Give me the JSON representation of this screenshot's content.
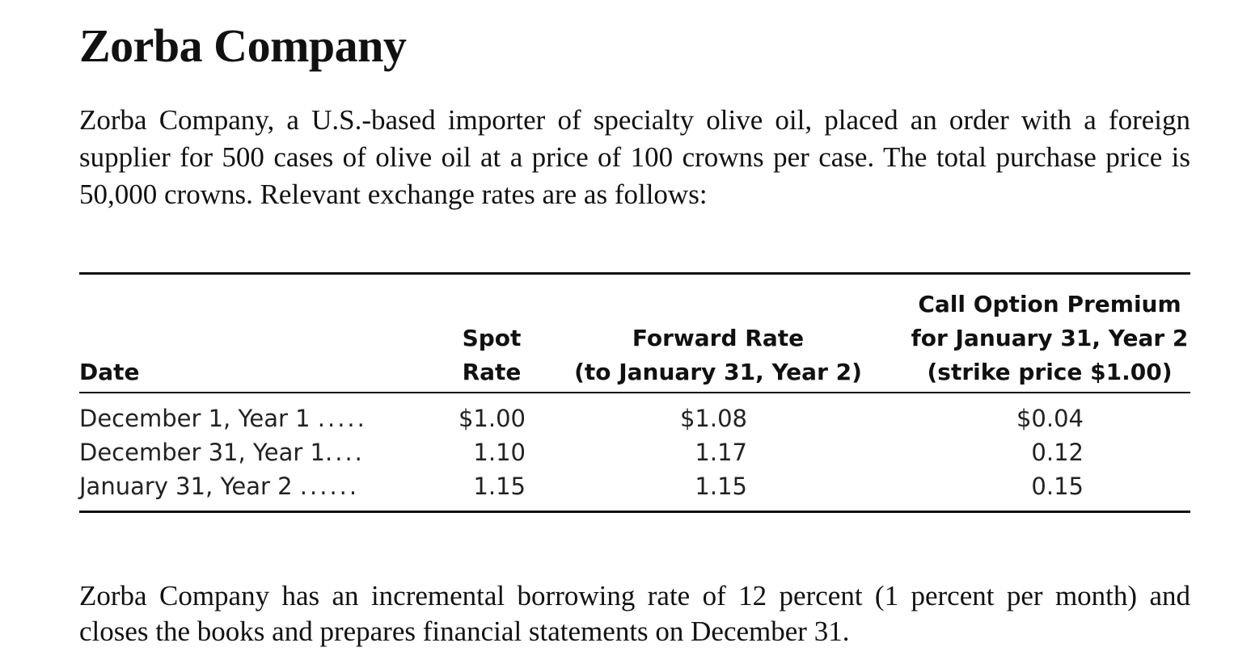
{
  "title": "Zorba Company",
  "intro": "Zorba Company, a U.S.-based importer of specialty olive oil, placed an order with a foreign supplier for 500 cases of olive oil at a price of 100 crowns per case. The total purchase price is 50,000 crowns. Relevant exchange rates are as follows:",
  "table": {
    "headers": {
      "date": [
        "Date"
      ],
      "spot": [
        "Spot",
        "Rate"
      ],
      "forward": [
        "Forward Rate",
        "(to January 31, Year 2)"
      ],
      "call": [
        "Call Option Premium",
        "for January 31, Year 2",
        "(strike price $1.00)"
      ]
    },
    "rows": [
      {
        "date": "December 1, Year 1",
        "dots": ".....",
        "spot": "$1.00",
        "forward": "$1.08",
        "call": "$0.04"
      },
      {
        "date": "December 31, Year 1",
        "dots": "....",
        "spot": "1.10",
        "forward": "1.17",
        "call": "0.12"
      },
      {
        "date": "January 31, Year 2",
        "dots": "......",
        "spot": "1.15",
        "forward": "1.15",
        "call": "0.15"
      }
    ]
  },
  "closing": "Zorba Company has an incremental borrowing rate of 12 percent (1 percent per month) and closes the books and prepares financial statements on December 31."
}
